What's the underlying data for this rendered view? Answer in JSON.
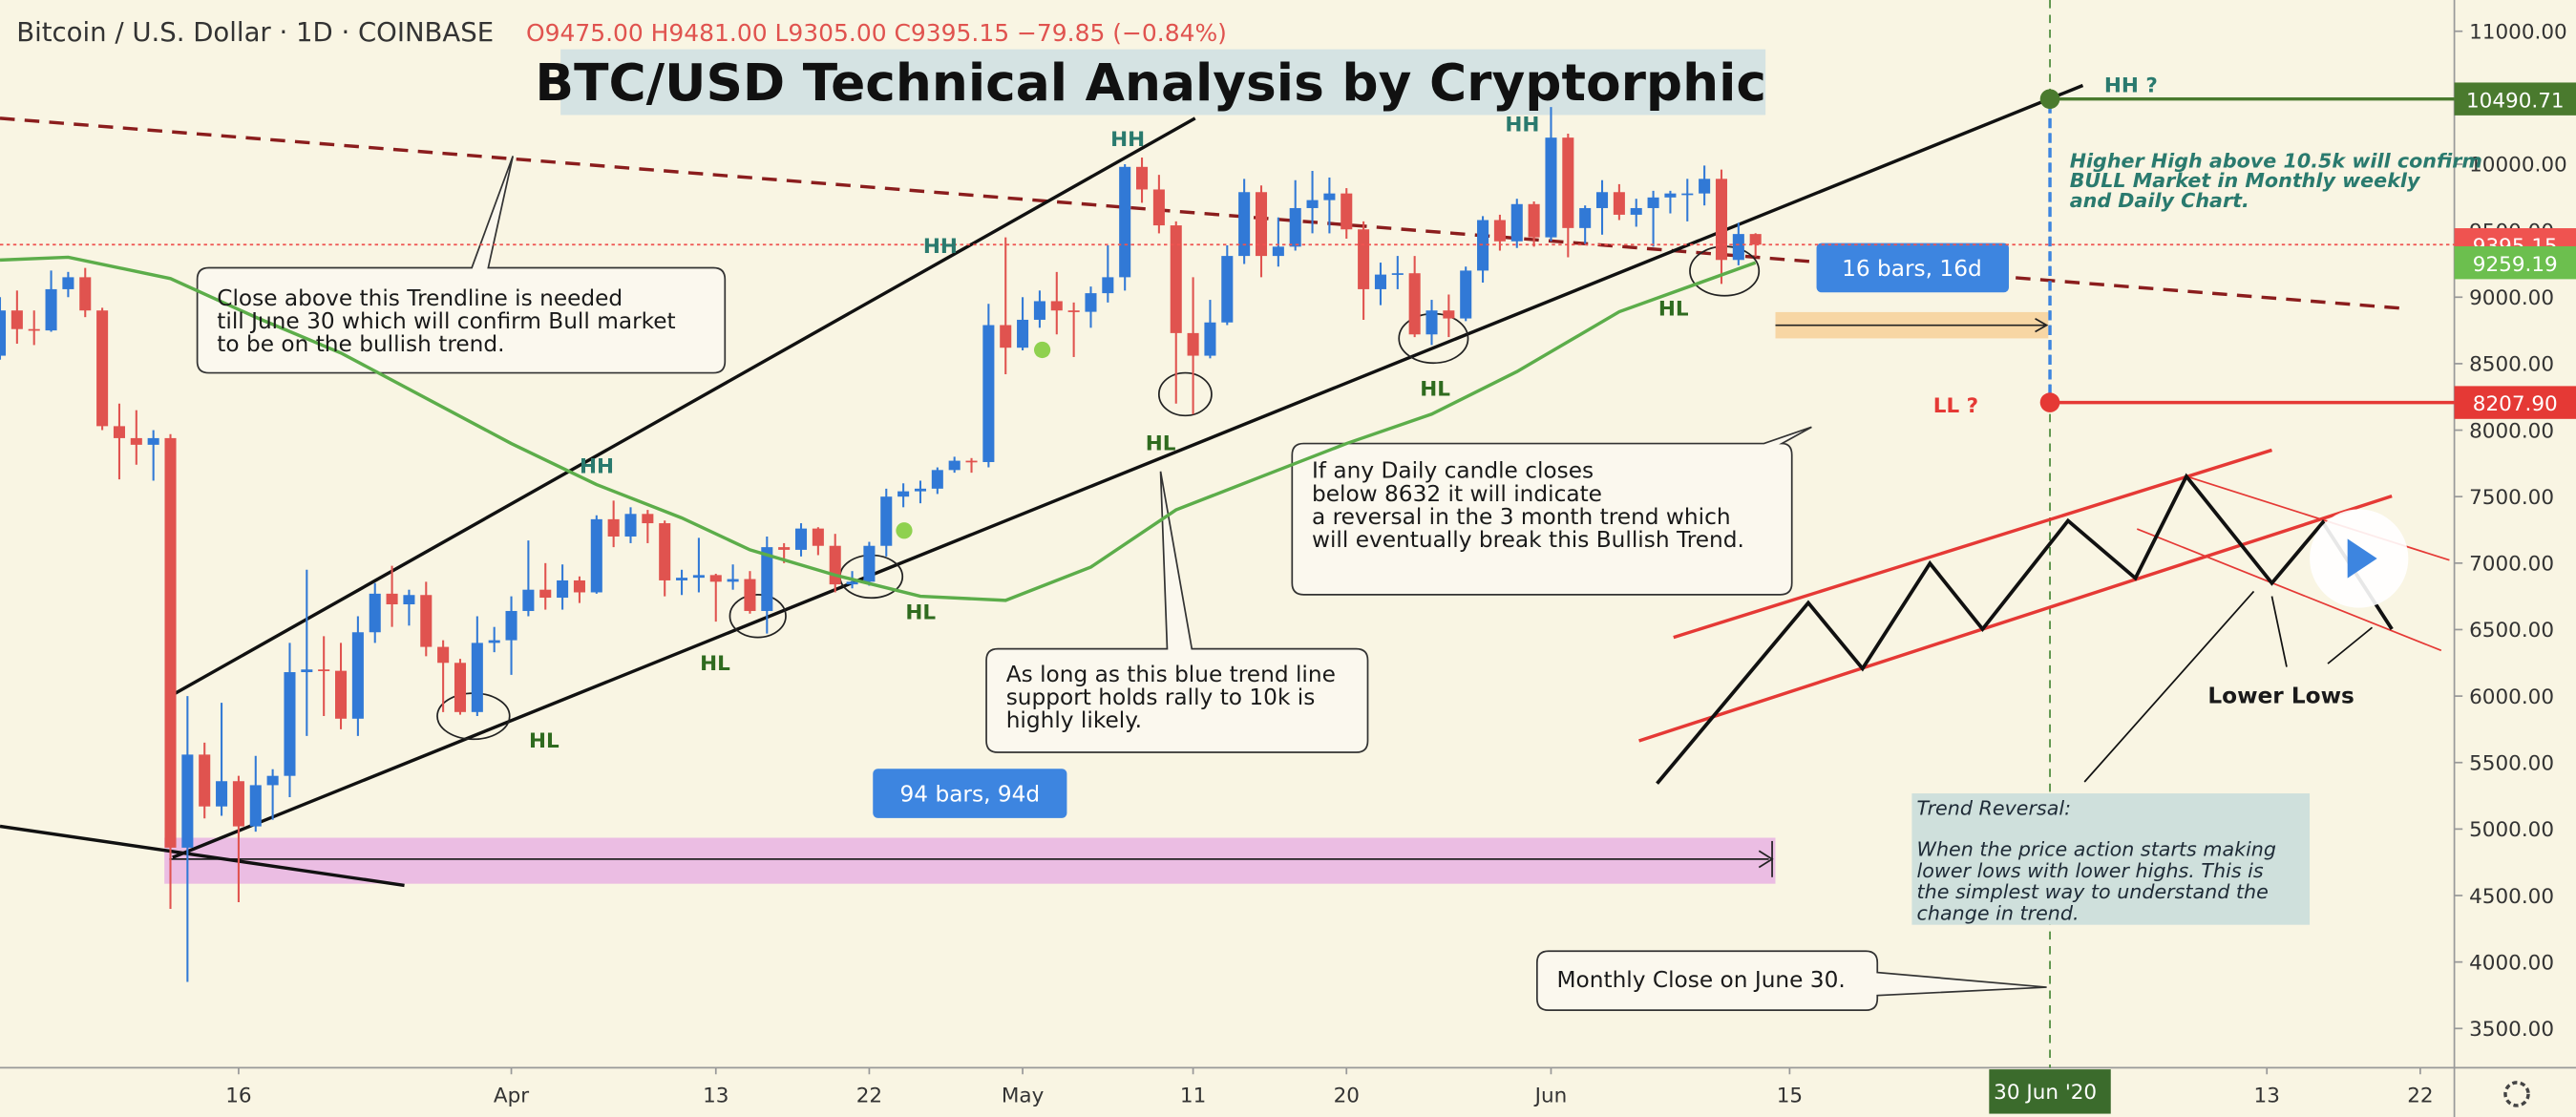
{
  "chart_data": {
    "type": "candlestick",
    "header": {
      "symbol": "Bitcoin / U.S. Dollar · 1D · COINBASE",
      "ohlc": "O9475.00 H9481.00 L9305.00 C9395.15 −79.85 (−0.84%)"
    },
    "title": "BTC/USD Technical Analysis by Cryptorphic",
    "up_color": "#3179d6",
    "down_color": "#e0534f",
    "x": [
      "2020-03-02",
      "2020-03-03",
      "2020-03-04",
      "2020-03-05",
      "2020-03-06",
      "2020-03-07",
      "2020-03-08",
      "2020-03-09",
      "2020-03-10",
      "2020-03-11",
      "2020-03-12",
      "2020-03-13",
      "2020-03-14",
      "2020-03-15",
      "2020-03-16",
      "2020-03-17",
      "2020-03-18",
      "2020-03-19",
      "2020-03-20",
      "2020-03-21",
      "2020-03-22",
      "2020-03-23",
      "2020-03-24",
      "2020-03-25",
      "2020-03-26",
      "2020-03-27",
      "2020-03-28",
      "2020-03-29",
      "2020-03-30",
      "2020-03-31",
      "2020-04-01",
      "2020-04-02",
      "2020-04-03",
      "2020-04-04",
      "2020-04-05",
      "2020-04-06",
      "2020-04-07",
      "2020-04-08",
      "2020-04-09",
      "2020-04-10",
      "2020-04-11",
      "2020-04-12",
      "2020-04-13",
      "2020-04-14",
      "2020-04-15",
      "2020-04-16",
      "2020-04-17",
      "2020-04-18",
      "2020-04-19",
      "2020-04-20",
      "2020-04-21",
      "2020-04-22",
      "2020-04-23",
      "2020-04-24",
      "2020-04-25",
      "2020-04-26",
      "2020-04-27",
      "2020-04-28",
      "2020-04-29",
      "2020-04-30",
      "2020-05-01",
      "2020-05-02",
      "2020-05-03",
      "2020-05-04",
      "2020-05-05",
      "2020-05-06",
      "2020-05-07",
      "2020-05-08",
      "2020-05-09",
      "2020-05-10",
      "2020-05-11",
      "2020-05-12",
      "2020-05-13",
      "2020-05-14",
      "2020-05-15",
      "2020-05-16",
      "2020-05-17",
      "2020-05-18",
      "2020-05-19",
      "2020-05-20",
      "2020-05-21",
      "2020-05-22",
      "2020-05-23",
      "2020-05-24",
      "2020-05-25",
      "2020-05-26",
      "2020-05-27",
      "2020-05-28",
      "2020-05-29",
      "2020-05-30",
      "2020-05-31",
      "2020-06-01",
      "2020-06-02",
      "2020-06-03",
      "2020-06-04",
      "2020-06-05",
      "2020-06-06",
      "2020-06-07",
      "2020-06-08",
      "2020-06-09",
      "2020-06-10",
      "2020-06-11",
      "2020-06-12",
      "2020-06-13"
    ],
    "open": [
      8560,
      8900,
      8760,
      8750,
      9060,
      9150,
      8900,
      8030,
      7940,
      7890,
      7940,
      4860,
      5560,
      5170,
      5360,
      5020,
      5330,
      5400,
      6180,
      6200,
      6190,
      5830,
      6480,
      6770,
      6690,
      6760,
      6370,
      6250,
      5880,
      6400,
      6420,
      6640,
      6800,
      6740,
      6870,
      6780,
      7330,
      7200,
      7370,
      7300,
      6870,
      6890,
      6910,
      6860,
      6880,
      6640,
      7120,
      7100,
      7260,
      7130,
      6840,
      6860,
      7130,
      7500,
      7540,
      7560,
      7700,
      7770,
      7760,
      8790,
      8620,
      8830,
      8970,
      8900,
      8890,
      9030,
      9150,
      9980,
      9810,
      9540,
      8730,
      8560,
      8810,
      9310,
      9790,
      9310,
      9380,
      9670,
      9730,
      9780,
      9510,
      9060,
      9170,
      9180,
      8720,
      8900,
      8840,
      9200,
      9580,
      9420,
      9700,
      9450,
      10200,
      9520,
      9670,
      9790,
      9620,
      9670,
      9750,
      9780,
      9780,
      9890,
      9280,
      9475
    ],
    "high": [
      9000,
      9050,
      8900,
      9200,
      9190,
      9220,
      8920,
      8200,
      8150,
      8000,
      7970,
      6000,
      5650,
      5950,
      5400,
      5550,
      5450,
      6400,
      6950,
      6450,
      6400,
      6600,
      6850,
      6980,
      6800,
      6860,
      6420,
      6280,
      6600,
      6520,
      6750,
      7170,
      7000,
      6990,
      6900,
      7360,
      7470,
      7420,
      7400,
      7320,
      6950,
      7190,
      6920,
      6990,
      6940,
      7200,
      7150,
      7300,
      7270,
      7220,
      6940,
      7160,
      7560,
      7600,
      7620,
      7720,
      7800,
      7790,
      8950,
      9450,
      9000,
      9050,
      9190,
      8960,
      9080,
      9390,
      10000,
      10050,
      9920,
      9570,
      9150,
      8980,
      9390,
      9890,
      9840,
      9600,
      9880,
      9950,
      9900,
      9820,
      9570,
      9260,
      9310,
      9310,
      8980,
      9020,
      9230,
      9610,
      9620,
      9740,
      9720,
      10430,
      10230,
      9690,
      9880,
      9850,
      9740,
      9800,
      9800,
      9890,
      9990,
      9960,
      9560,
      9481
    ],
    "low": [
      8530,
      8650,
      8640,
      8740,
      9000,
      8850,
      8000,
      7630,
      7740,
      7620,
      4400,
      3850,
      5080,
      5100,
      4450,
      4980,
      5070,
      5240,
      5700,
      5850,
      5750,
      5700,
      6400,
      6520,
      6530,
      6300,
      5880,
      5860,
      5850,
      6330,
      6160,
      6600,
      6650,
      6650,
      6700,
      6770,
      7120,
      7150,
      7150,
      6750,
      6760,
      6780,
      6560,
      6800,
      6620,
      6470,
      7000,
      7050,
      7060,
      6780,
      6810,
      6830,
      7050,
      7420,
      7450,
      7520,
      7680,
      7680,
      7720,
      8420,
      8600,
      8770,
      8720,
      8550,
      8770,
      8960,
      9050,
      9710,
      9480,
      8200,
      8120,
      8540,
      8790,
      9250,
      9150,
      9230,
      9350,
      9480,
      9480,
      9440,
      8830,
      8940,
      9060,
      8700,
      8640,
      8700,
      8820,
      9110,
      9350,
      9370,
      9380,
      9420,
      9300,
      9400,
      9470,
      9580,
      9530,
      9380,
      9630,
      9570,
      9690,
      9100,
      9240,
      9305
    ],
    "close": [
      8900,
      8760,
      8750,
      9060,
      9150,
      8900,
      8030,
      7940,
      7890,
      7940,
      4860,
      5560,
      5170,
      5360,
      5020,
      5330,
      5400,
      6180,
      6200,
      6190,
      5830,
      6480,
      6770,
      6690,
      6760,
      6370,
      6250,
      5880,
      6400,
      6420,
      6640,
      6800,
      6740,
      6870,
      6780,
      7330,
      7200,
      7370,
      7300,
      6870,
      6890,
      6910,
      6860,
      6880,
      6640,
      7120,
      7100,
      7260,
      7130,
      6840,
      6860,
      7130,
      7500,
      7540,
      7560,
      7700,
      7770,
      7760,
      8790,
      8620,
      8830,
      8970,
      8900,
      8890,
      9030,
      9150,
      9980,
      9810,
      9540,
      8730,
      8560,
      8810,
      9310,
      9790,
      9310,
      9380,
      9670,
      9730,
      9780,
      9510,
      9060,
      9170,
      9180,
      8720,
      8900,
      8840,
      9200,
      9580,
      9420,
      9700,
      9450,
      10200,
      9520,
      9670,
      9790,
      9620,
      9670,
      9750,
      9780,
      9780,
      9890,
      9280,
      9475,
      9395.15
    ],
    "ma": {
      "color": "#5cad4a",
      "x": [
        "2020-03-02",
        "2020-03-06",
        "2020-03-12",
        "2020-03-17",
        "2020-03-22",
        "2020-04-01",
        "2020-04-06",
        "2020-04-11",
        "2020-04-15",
        "2020-04-20",
        "2020-04-25",
        "2020-04-30",
        "2020-05-05",
        "2020-05-10",
        "2020-05-15",
        "2020-05-20",
        "2020-05-25",
        "2020-05-30",
        "2020-06-05",
        "2020-06-13"
      ],
      "values": [
        9280,
        9300,
        9140,
        8850,
        8580,
        7900,
        7590,
        7340,
        7100,
        6910,
        6750,
        6720,
        6970,
        7400,
        7650,
        7900,
        8120,
        8440,
        8890,
        9259.19
      ]
    },
    "xlim": [
      "2020-03-02",
      "2020-07-24"
    ],
    "xticks": [
      {
        "value": "2020-03-16",
        "label": "16"
      },
      {
        "value": "2020-04-01",
        "label": "Apr"
      },
      {
        "value": "2020-04-13",
        "label": "13"
      },
      {
        "value": "2020-04-22",
        "label": "22"
      },
      {
        "value": "2020-05-01",
        "label": "May"
      },
      {
        "value": "2020-05-11",
        "label": "11"
      },
      {
        "value": "2020-05-20",
        "label": "20"
      },
      {
        "value": "2020-06-01",
        "label": "Jun"
      },
      {
        "value": "2020-06-15",
        "label": "15"
      },
      {
        "value": "2020-07-13",
        "label": "13"
      },
      {
        "value": "2020-07-22",
        "label": "22"
      }
    ],
    "crosshair": {
      "value": "2020-06-30",
      "label": "30 Jun '20"
    },
    "ylim": [
      3205,
      11235
    ],
    "yticks": [
      {
        "value": 3500,
        "label": "3500.00"
      },
      {
        "value": 4000,
        "label": "4000.00"
      },
      {
        "value": 4500,
        "label": "4500.00"
      },
      {
        "value": 5000,
        "label": "5000.00"
      },
      {
        "value": 5500,
        "label": "5500.00"
      },
      {
        "value": 6000,
        "label": "6000.00"
      },
      {
        "value": 6500,
        "label": "6500.00"
      },
      {
        "value": 7000,
        "label": "7000.00"
      },
      {
        "value": 7500,
        "label": "7500.00"
      },
      {
        "value": 8000,
        "label": "8000.00"
      },
      {
        "value": 8500,
        "label": "8500.00"
      },
      {
        "value": 9000,
        "label": "9000.00"
      },
      {
        "value": 9500,
        "label": "9500.00"
      },
      {
        "value": 10000,
        "label": "10000.00"
      },
      {
        "value": 10500,
        "label": "10500.00"
      },
      {
        "value": 11000,
        "label": "11000.00"
      }
    ],
    "price_labels": [
      {
        "value": 10490.71,
        "label": "10490.71",
        "color": "#4a7a2e"
      },
      {
        "value": 9395.15,
        "label": "9395.15",
        "color": "#ef5350"
      },
      {
        "value": 9259.19,
        "label": "9259.19",
        "color": "#6cbf4e"
      },
      {
        "value": 8207.9,
        "label": "8207.90",
        "color": "#e53935"
      }
    ],
    "annotations": {
      "trendline_note": [
        "Close above this Trendline is needed",
        "till June 30 which will confirm Bull market",
        "to be on the bullish trend."
      ],
      "reversal_note": [
        "If any Daily candle closes",
        "below 8632 it will indicate",
        "a reversal in the 3 month trend which",
        "will eventually break this Bullish Trend."
      ],
      "support_note": [
        "As long as this blue trend line",
        "support holds rally to 10k is",
        "highly likely."
      ],
      "monthly_note": "Monthly Close on June 30.",
      "bars_94": "94 bars, 94d",
      "bars_16": "16 bars, 16d",
      "hh_note": [
        "Higher High above 10.5k will confirm",
        "BULL Market in Monthly weekly",
        "and Daily Chart."
      ],
      "trend_box": [
        "Trend Reversal:",
        "When the price action starts making",
        "lower lows with lower highs. This is",
        "the simplest way to understand the",
        "change in trend."
      ],
      "hh": "HH",
      "hl": "HL",
      "hh_q": "HH ?",
      "ll_q": "LL ?",
      "lower_lows": "Lower Lows"
    }
  }
}
